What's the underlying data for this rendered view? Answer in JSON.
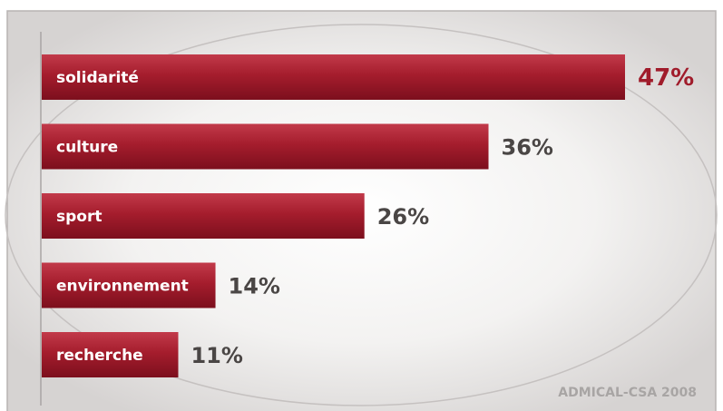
{
  "chart_data": {
    "type": "bar",
    "orientation": "horizontal",
    "categories": [
      "solidarité",
      "culture",
      "sport",
      "environnement",
      "recherche"
    ],
    "values": [
      47,
      36,
      26,
      14,
      11
    ],
    "value_labels": [
      "47%",
      "36%",
      "26%",
      "14%",
      "11%"
    ],
    "unit": "%",
    "xlim": [
      0,
      47
    ],
    "grid": false,
    "legend": "none",
    "source": "ADMICAL-CSA 2008"
  },
  "colors": {
    "bar": "#a51d2d",
    "bar_dark": "#7c0f1d",
    "bar_light": "#c23a4a",
    "value_text": "#4a4645",
    "highlight_value_text": "#a01c2b",
    "frame": "#b7b3b2",
    "ellipse": "#c5c1c0",
    "background_center": "#ffffff",
    "background_edge": "#d9d6d5"
  }
}
